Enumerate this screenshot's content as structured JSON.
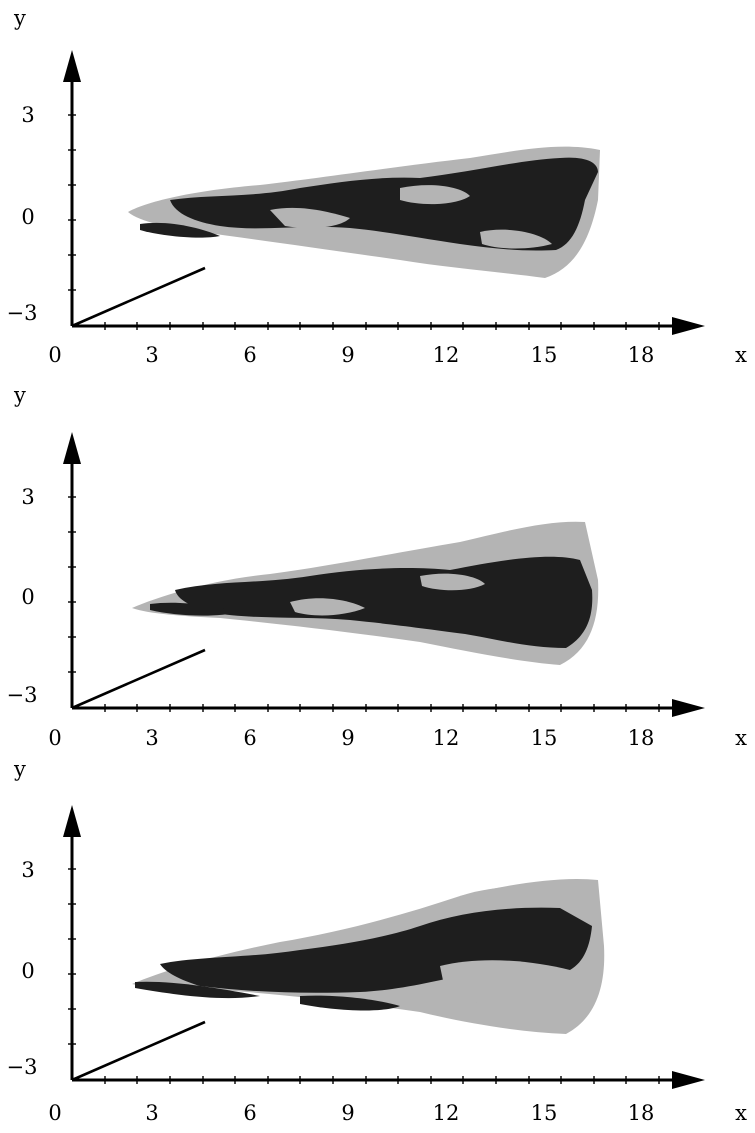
{
  "colors": {
    "axis": "#000000",
    "dark_surface": "#1e1e1e",
    "light_surface": "#b4b4b4",
    "background": "#ffffff"
  },
  "panels": [
    {
      "x_axis": {
        "label": "x",
        "ticks": [
          "0",
          "3",
          "6",
          "9",
          "12",
          "15",
          "18"
        ]
      },
      "y_axis": {
        "label": "y",
        "ticks": [
          "3",
          "0",
          "−3"
        ]
      }
    },
    {
      "x_axis": {
        "label": "x",
        "ticks": [
          "0",
          "3",
          "6",
          "9",
          "12",
          "15",
          "18"
        ]
      },
      "y_axis": {
        "label": "y",
        "ticks": [
          "3",
          "0",
          "−3"
        ]
      }
    },
    {
      "x_axis": {
        "label": "x",
        "ticks": [
          "0",
          "3",
          "6",
          "9",
          "12",
          "15",
          "18"
        ]
      },
      "y_axis": {
        "label": "y",
        "ticks": [
          "3",
          "0",
          "−3"
        ]
      }
    }
  ]
}
